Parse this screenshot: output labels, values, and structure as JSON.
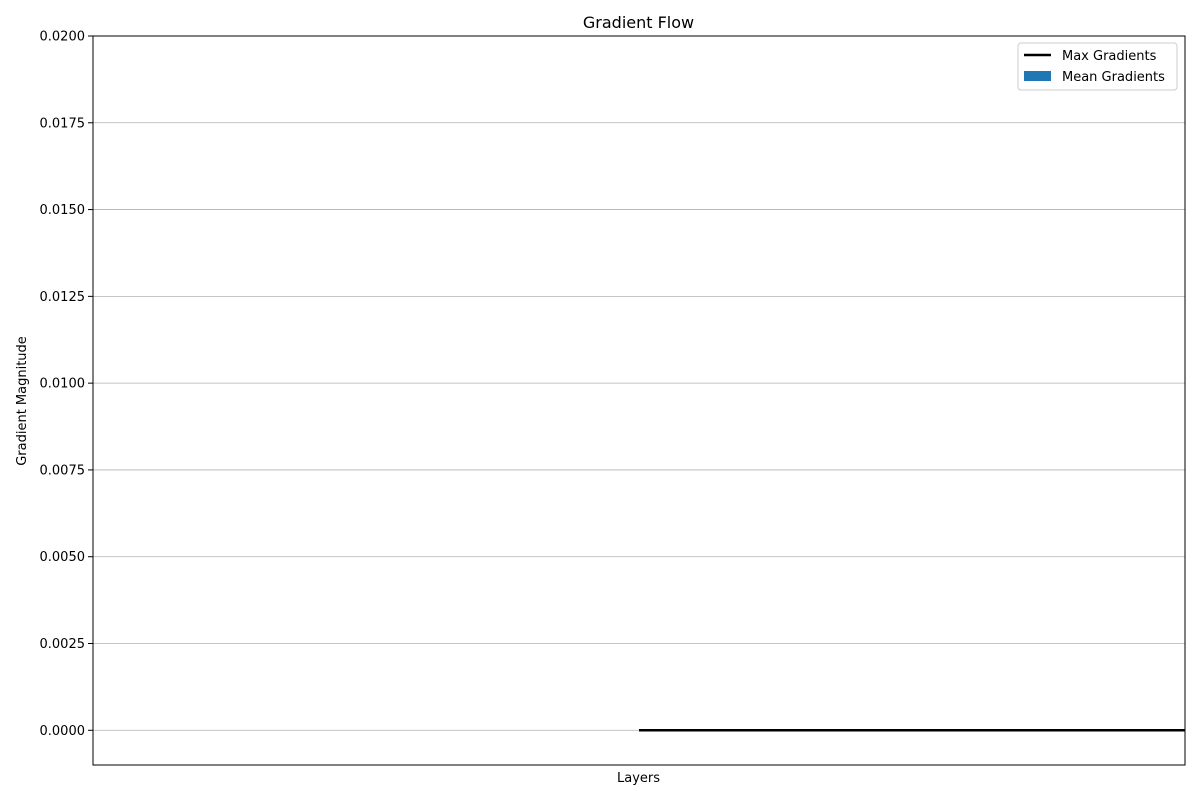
{
  "chart_data": {
    "type": "bar",
    "title": "Gradient Flow",
    "xlabel": "Layers",
    "ylabel": "Gradient Magnitude",
    "ylim": [
      -0.001,
      0.02
    ],
    "yticks": [
      "0.0000",
      "0.0025",
      "0.0050",
      "0.0075",
      "0.0100",
      "0.0125",
      "0.0150",
      "0.0175",
      "0.0200"
    ],
    "ytick_values": [
      0,
      0.0025,
      0.005,
      0.0075,
      0.01,
      0.0125,
      0.015,
      0.0175,
      0.02
    ],
    "grid": "y",
    "legend_position": "top-right",
    "categories": [],
    "series": [
      {
        "name": "Max Gradients",
        "kind": "line",
        "x": [
          0,
          1
        ],
        "values": [
          0,
          0
        ],
        "color": "#000000"
      },
      {
        "name": "Mean Gradients",
        "kind": "bar",
        "values": [],
        "color": "#1f77b4"
      }
    ]
  }
}
